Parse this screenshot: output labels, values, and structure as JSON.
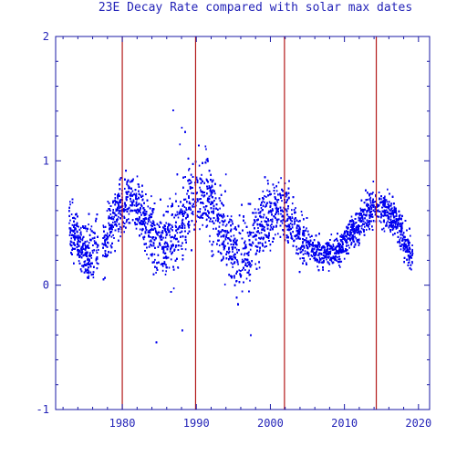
{
  "chart_data": {
    "type": "scatter",
    "title": "23E Decay Rate compared with solar max dates",
    "xlabel": "",
    "ylabel": "",
    "xlim": [
      1971.0,
      2021.5
    ],
    "ylim": [
      -1,
      2
    ],
    "x_ticks": [
      1980,
      1990,
      2000,
      2010,
      2020
    ],
    "y_ticks": [
      -1,
      0,
      1,
      2
    ],
    "grid": false,
    "legend": "none",
    "vlines": [
      1980.0,
      1989.9,
      2001.9,
      2014.3
    ],
    "colors": {
      "axis": "#1a1aa6",
      "text": "#2424b8",
      "points": "#0000ee",
      "vlines": "#b31919"
    },
    "series_trend": {
      "x": [
        1972.8,
        1974,
        1975.2,
        1976.5,
        1977.5,
        1978.5,
        1979.5,
        1980.5,
        1981.5,
        1982.5,
        1983.5,
        1984.5,
        1985.5,
        1986.5,
        1987.5,
        1988.5,
        1989.5,
        1990.5,
        1991.5,
        1992.5,
        1993.5,
        1994.5,
        1995.5,
        1996.5,
        1997.5,
        1998.5,
        1999.5,
        2000.5,
        2001.5,
        2002.5,
        2003.5,
        2004.5,
        2005.5,
        2006.5,
        2007.5,
        2008.5,
        2009.5,
        2010.5,
        2011.5,
        2012.5,
        2013.5,
        2014.5,
        2015.5,
        2016.5,
        2017.5,
        2018.5,
        2019.2
      ],
      "y": [
        0.5,
        0.35,
        0.25,
        0.3,
        0.3,
        0.5,
        0.6,
        0.65,
        0.7,
        0.6,
        0.5,
        0.4,
        0.3,
        0.35,
        0.45,
        0.55,
        0.75,
        0.75,
        0.7,
        0.55,
        0.45,
        0.3,
        0.2,
        0.25,
        0.3,
        0.45,
        0.55,
        0.6,
        0.65,
        0.55,
        0.45,
        0.35,
        0.3,
        0.25,
        0.25,
        0.28,
        0.3,
        0.4,
        0.45,
        0.55,
        0.6,
        0.65,
        0.6,
        0.55,
        0.45,
        0.3,
        0.25
      ]
    }
  }
}
